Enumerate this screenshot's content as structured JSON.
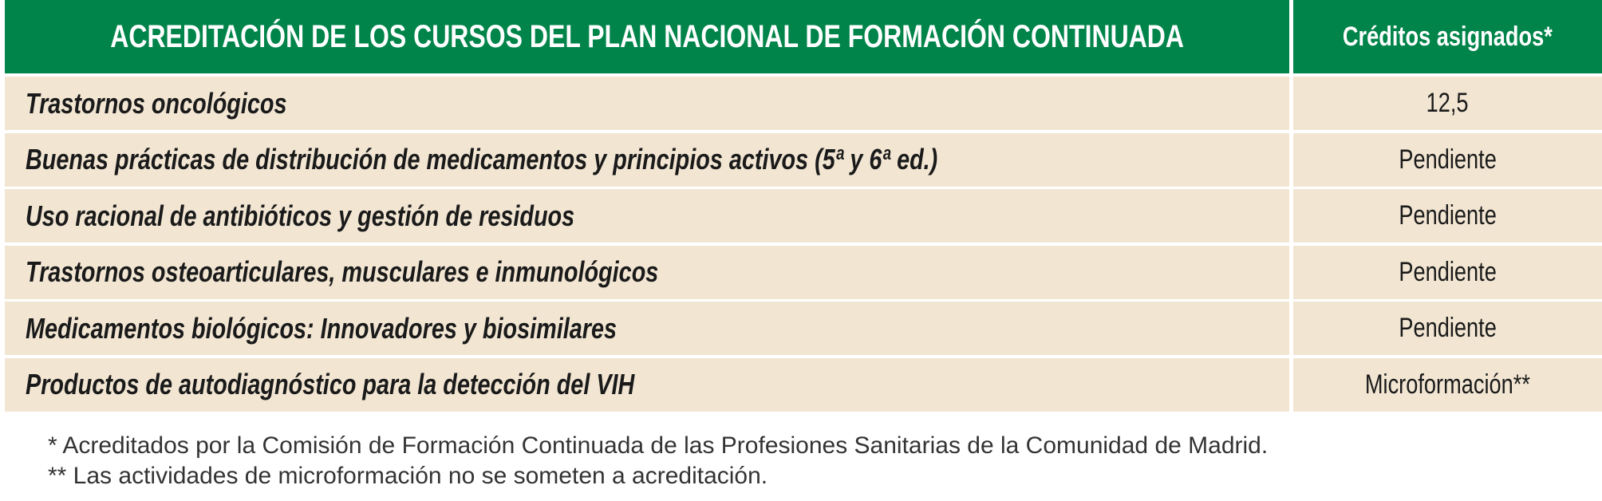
{
  "table": {
    "header": [
      "ACREDITACIÓN DE LOS CURSOS DEL PLAN NACIONAL DE FORMACIÓN CONTINUADA",
      "Créditos asignados*"
    ],
    "rows": [
      [
        "Trastornos oncológicos",
        "12,5"
      ],
      [
        "Buenas prácticas de distribución de medicamentos y principios activos (5ª y 6ª ed.)",
        "Pendiente"
      ],
      [
        "Uso racional de antibióticos y gestión de residuos",
        "Pendiente"
      ],
      [
        "Trastornos osteoarticulares, musculares e inmunológicos",
        "Pendiente"
      ],
      [
        "Medicamentos biológicos: Innovadores y biosimilares",
        "Pendiente"
      ],
      [
        "Productos de autodiagnóstico para la detección del VIH",
        "Microformación**"
      ]
    ]
  },
  "footnotes": [
    "* Acreditados por la Comisión de Formación Continuada de las Profesiones Sanitarias de la Comunidad de Madrid.",
    "** Las actividades de microformación no se someten a acreditación."
  ]
}
